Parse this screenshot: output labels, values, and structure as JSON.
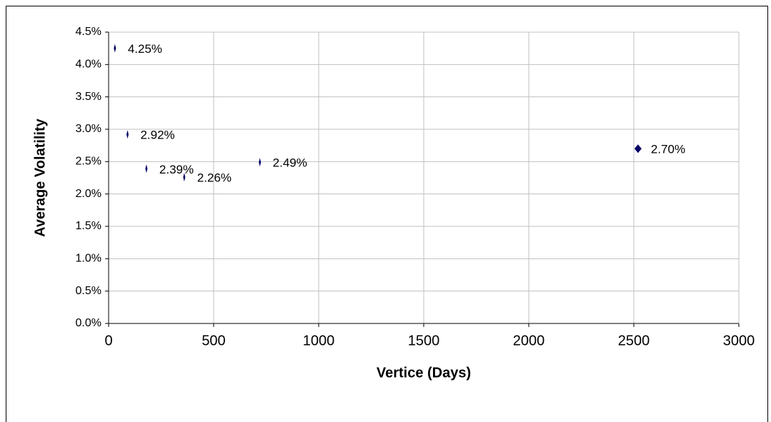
{
  "chart_data": {
    "type": "scatter",
    "x_label": "Vertice (Days)",
    "y_label": "Average Volatility",
    "series": [
      {
        "color": "#000066",
        "x": [
          30,
          90,
          180,
          360,
          720,
          2520
        ],
        "values": [
          4.25,
          2.92,
          2.39,
          2.26,
          2.49,
          2.7
        ],
        "value_labels": [
          "4.25%",
          "2.92%",
          "2.39%",
          "2.26%",
          "2.49%",
          "2.70%"
        ]
      }
    ],
    "xlim": [
      0,
      3000
    ],
    "xticks": [
      0,
      500,
      1000,
      1500,
      2000,
      2500,
      3000
    ],
    "ylim": [
      0,
      4.5
    ],
    "yticks": [
      {
        "value": 0,
        "label": "0.0%"
      },
      {
        "value": 0.5,
        "label": "0.5%"
      },
      {
        "value": 1,
        "label": "1.0%"
      },
      {
        "value": 1.5,
        "label": "1.5%"
      },
      {
        "value": 2,
        "label": "2.0%"
      },
      {
        "value": 2.5,
        "label": "2.5%"
      },
      {
        "value": 3,
        "label": "3.0%"
      },
      {
        "value": 3.5,
        "label": "3.5%"
      },
      {
        "value": 4,
        "label": "4.0%"
      },
      {
        "value": 4.5,
        "label": "4.5%"
      }
    ],
    "grid": true
  }
}
